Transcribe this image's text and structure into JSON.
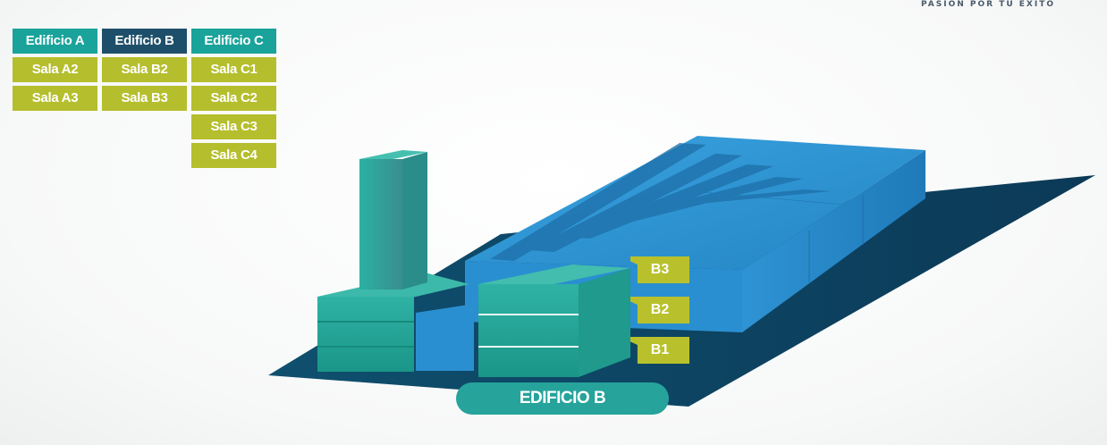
{
  "tagline": "PASION POR TU EXITO",
  "legend": {
    "edificio_a": {
      "header": "Edificio A",
      "rooms": [
        "Sala A2",
        "Sala A3"
      ]
    },
    "edificio_b": {
      "header": "Edificio B",
      "rooms": [
        "Sala B2",
        "Sala B3"
      ]
    },
    "edificio_c": {
      "header": "Edificio C",
      "rooms": [
        "Sala C1",
        "Sala C2",
        "Sala C3",
        "Sala C4"
      ]
    }
  },
  "floors": [
    "B3",
    "B2",
    "B1"
  ],
  "building_label": "EDIFICIO B",
  "colors": {
    "teal": "#1aa39a",
    "navy": "#1e4f6a",
    "olive": "#b5be2d",
    "blue": "#2a8fd0",
    "floor": "#0e4a6a"
  }
}
